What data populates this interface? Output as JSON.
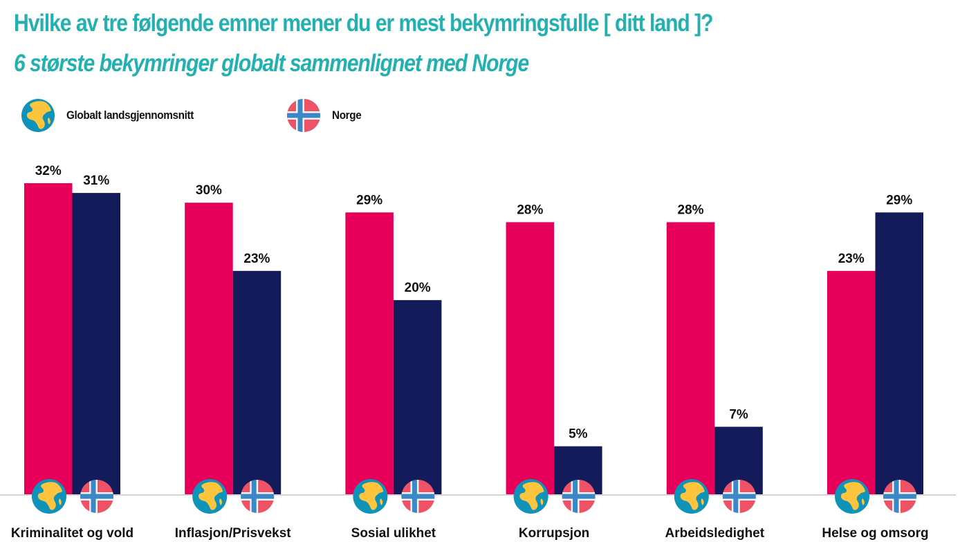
{
  "header": {
    "title": "Hvilke av tre følgende emner mener du er mest bekymringsfulle [ ditt land ]?",
    "subtitle": "6 største bekymringer globalt sammenlignet med Norge"
  },
  "legend": [
    {
      "label": "Globalt landsgjennomsnitt",
      "icon": "globe-icon",
      "color": "#e6005a"
    },
    {
      "label": "Norge",
      "icon": "norway-flag-icon",
      "color": "#141b5b"
    }
  ],
  "colors": {
    "title": "#22b1b0",
    "global": "#e6005a",
    "norway": "#141b5b",
    "axis": "#d6d6d6",
    "globe_ocean": "#0f93b8",
    "globe_land": "#fcc53d",
    "flag_red": "#ee5266",
    "flag_blue": "#3c87c6"
  },
  "chart_data": {
    "type": "bar",
    "title": "Hvilke av tre følgende emner mener du er mest bekymringsfulle [ ditt land ]?",
    "subtitle": "6 største bekymringer globalt sammenlignet med Norge",
    "xlabel": "",
    "ylabel": "",
    "ylim": [
      0,
      32
    ],
    "grid": false,
    "legend_position": "top-left",
    "categories": [
      "Kriminalitet og vold",
      "Inflasjon/Prisvekst",
      "Sosial ulikhet",
      "Korrupsjon",
      "Arbeidsledighet",
      "Helse og omsorg"
    ],
    "series": [
      {
        "name": "Globalt landsgjennomsnitt",
        "values": [
          32,
          30,
          29,
          28,
          28,
          23
        ],
        "labels": [
          "32%",
          "30%",
          "29%",
          "28%",
          "28%",
          "23%"
        ]
      },
      {
        "name": "Norge",
        "values": [
          31,
          23,
          20,
          5,
          7,
          29
        ],
        "labels": [
          "31%",
          "23%",
          "20%",
          "5%",
          "7%",
          "29%"
        ]
      }
    ]
  }
}
